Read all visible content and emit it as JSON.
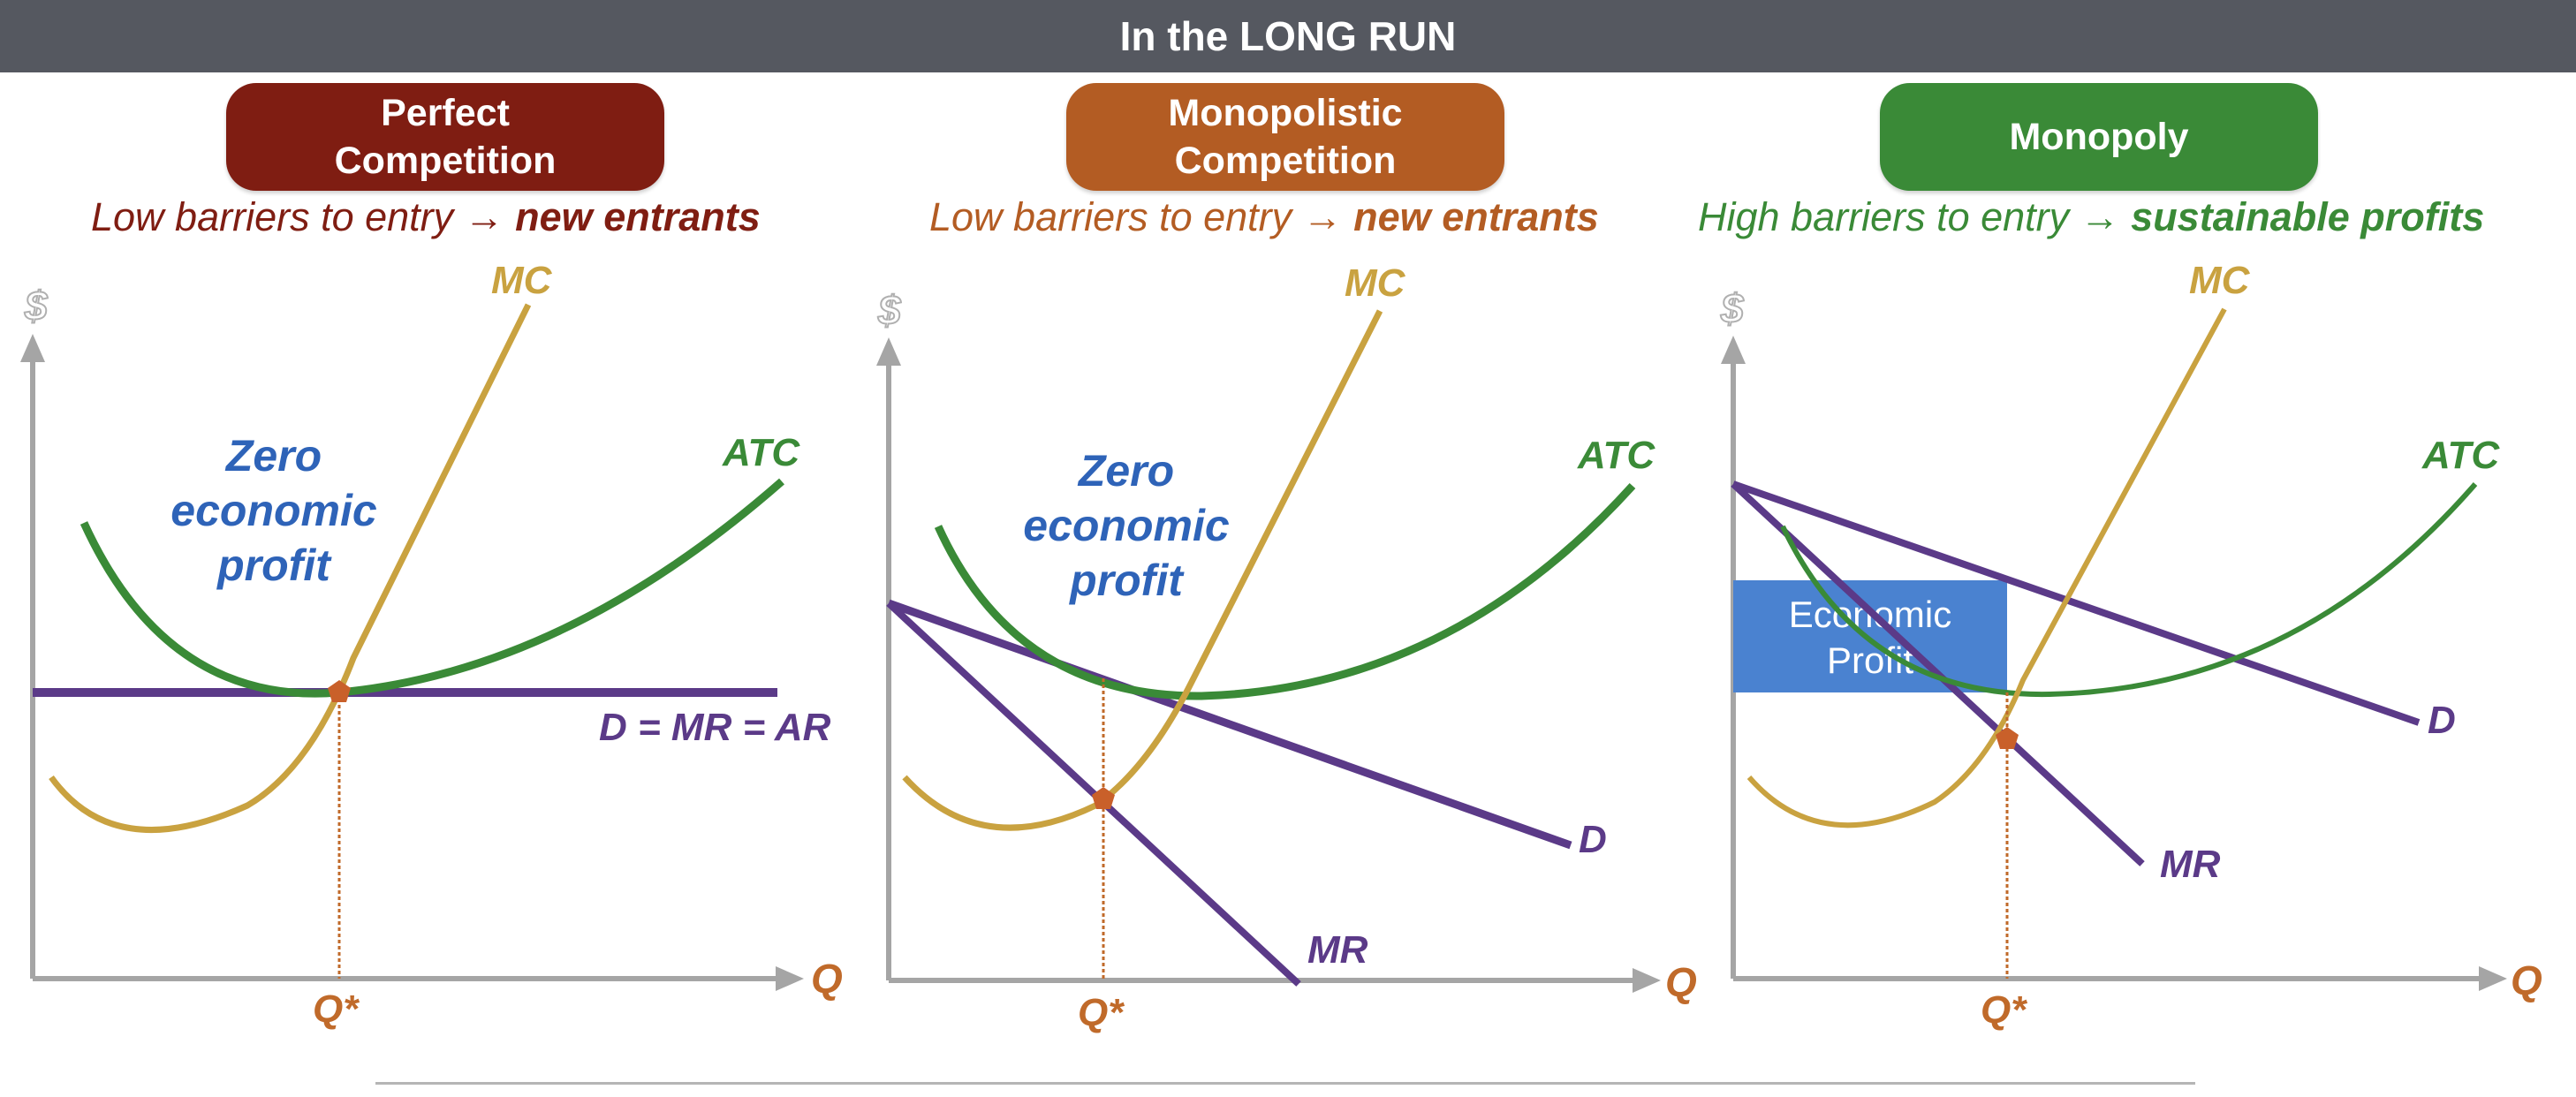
{
  "header": {
    "title": "In the LONG RUN"
  },
  "panels": [
    {
      "title_line1": "Perfect",
      "title_line2": "Competition",
      "title_color": "#7f1d12",
      "subtitle_plain": "Low barriers to entry → ",
      "subtitle_bold": "new entrants",
      "axis": {
        "y_label": "$",
        "x_label": "Q",
        "q_star": "Q*"
      },
      "curves": {
        "mc": "MC",
        "atc": "ATC",
        "demand": "D = MR = AR"
      },
      "annotation": {
        "line1": "Zero",
        "line2": "economic",
        "line3": "profit"
      }
    },
    {
      "title_line1": "Monopolistic",
      "title_line2": "Competition",
      "title_color": "#b35c23",
      "subtitle_plain": "Low barriers to entry → ",
      "subtitle_bold": "new entrants",
      "axis": {
        "y_label": "$",
        "x_label": "Q",
        "q_star": "Q*"
      },
      "curves": {
        "mc": "MC",
        "atc": "ATC",
        "demand": "D",
        "mr": "MR"
      },
      "annotation": {
        "line1": "Zero",
        "line2": "economic",
        "line3": "profit"
      }
    },
    {
      "title_line1": "Monopoly",
      "title_color": "#3a8a37",
      "subtitle_plain": "High barriers to entry → ",
      "subtitle_bold": "sustainable profits",
      "axis": {
        "y_label": "$",
        "x_label": "Q",
        "q_star": "Q*"
      },
      "curves": {
        "mc": "MC",
        "atc": "ATC",
        "demand": "D",
        "mr": "MR"
      },
      "profit_box": {
        "line1": "Economic",
        "line2": "Profit"
      }
    }
  ],
  "colors": {
    "mc": "#c9a240",
    "atc": "#3a8a37",
    "demand": "#5b3a88",
    "annotation": "#2e63b8",
    "q_label": "#c06a2a",
    "axis": "#a5a5a5",
    "profit_box": "#4a82d0",
    "dot": "#c9602a"
  }
}
